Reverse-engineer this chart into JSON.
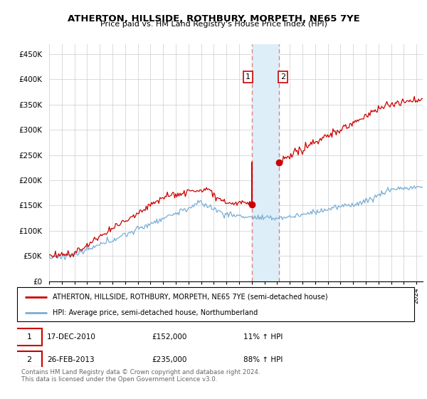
{
  "title": "ATHERTON, HILLSIDE, ROTHBURY, MORPETH, NE65 7YE",
  "subtitle": "Price paid vs. HM Land Registry's House Price Index (HPI)",
  "legend_line1": "ATHERTON, HILLSIDE, ROTHBURY, MORPETH, NE65 7YE (semi-detached house)",
  "legend_line2": "HPI: Average price, semi-detached house, Northumberland",
  "transaction1_date": "17-DEC-2010",
  "transaction1_price": "£152,000",
  "transaction1_hpi": "11% ↑ HPI",
  "transaction2_date": "26-FEB-2013",
  "transaction2_price": "£235,000",
  "transaction2_hpi": "88% ↑ HPI",
  "footer": "Contains HM Land Registry data © Crown copyright and database right 2024.\nThis data is licensed under the Open Government Licence v3.0.",
  "property_color": "#cc0000",
  "hpi_color": "#7aaed6",
  "highlight_color": "#ddeef8",
  "dashed_line_color": "#e08080",
  "ylim": [
    0,
    470000
  ],
  "yticks": [
    0,
    50000,
    100000,
    150000,
    200000,
    250000,
    300000,
    350000,
    400000,
    450000
  ],
  "ytick_labels": [
    "£0",
    "£50K",
    "£100K",
    "£150K",
    "£200K",
    "£250K",
    "£300K",
    "£350K",
    "£400K",
    "£450K"
  ],
  "transaction1_x": 2011.0,
  "transaction2_x": 2013.15,
  "transaction1_y": 152000,
  "transaction2_y": 235000,
  "xlim_start": 1995,
  "xlim_end": 2024.5
}
